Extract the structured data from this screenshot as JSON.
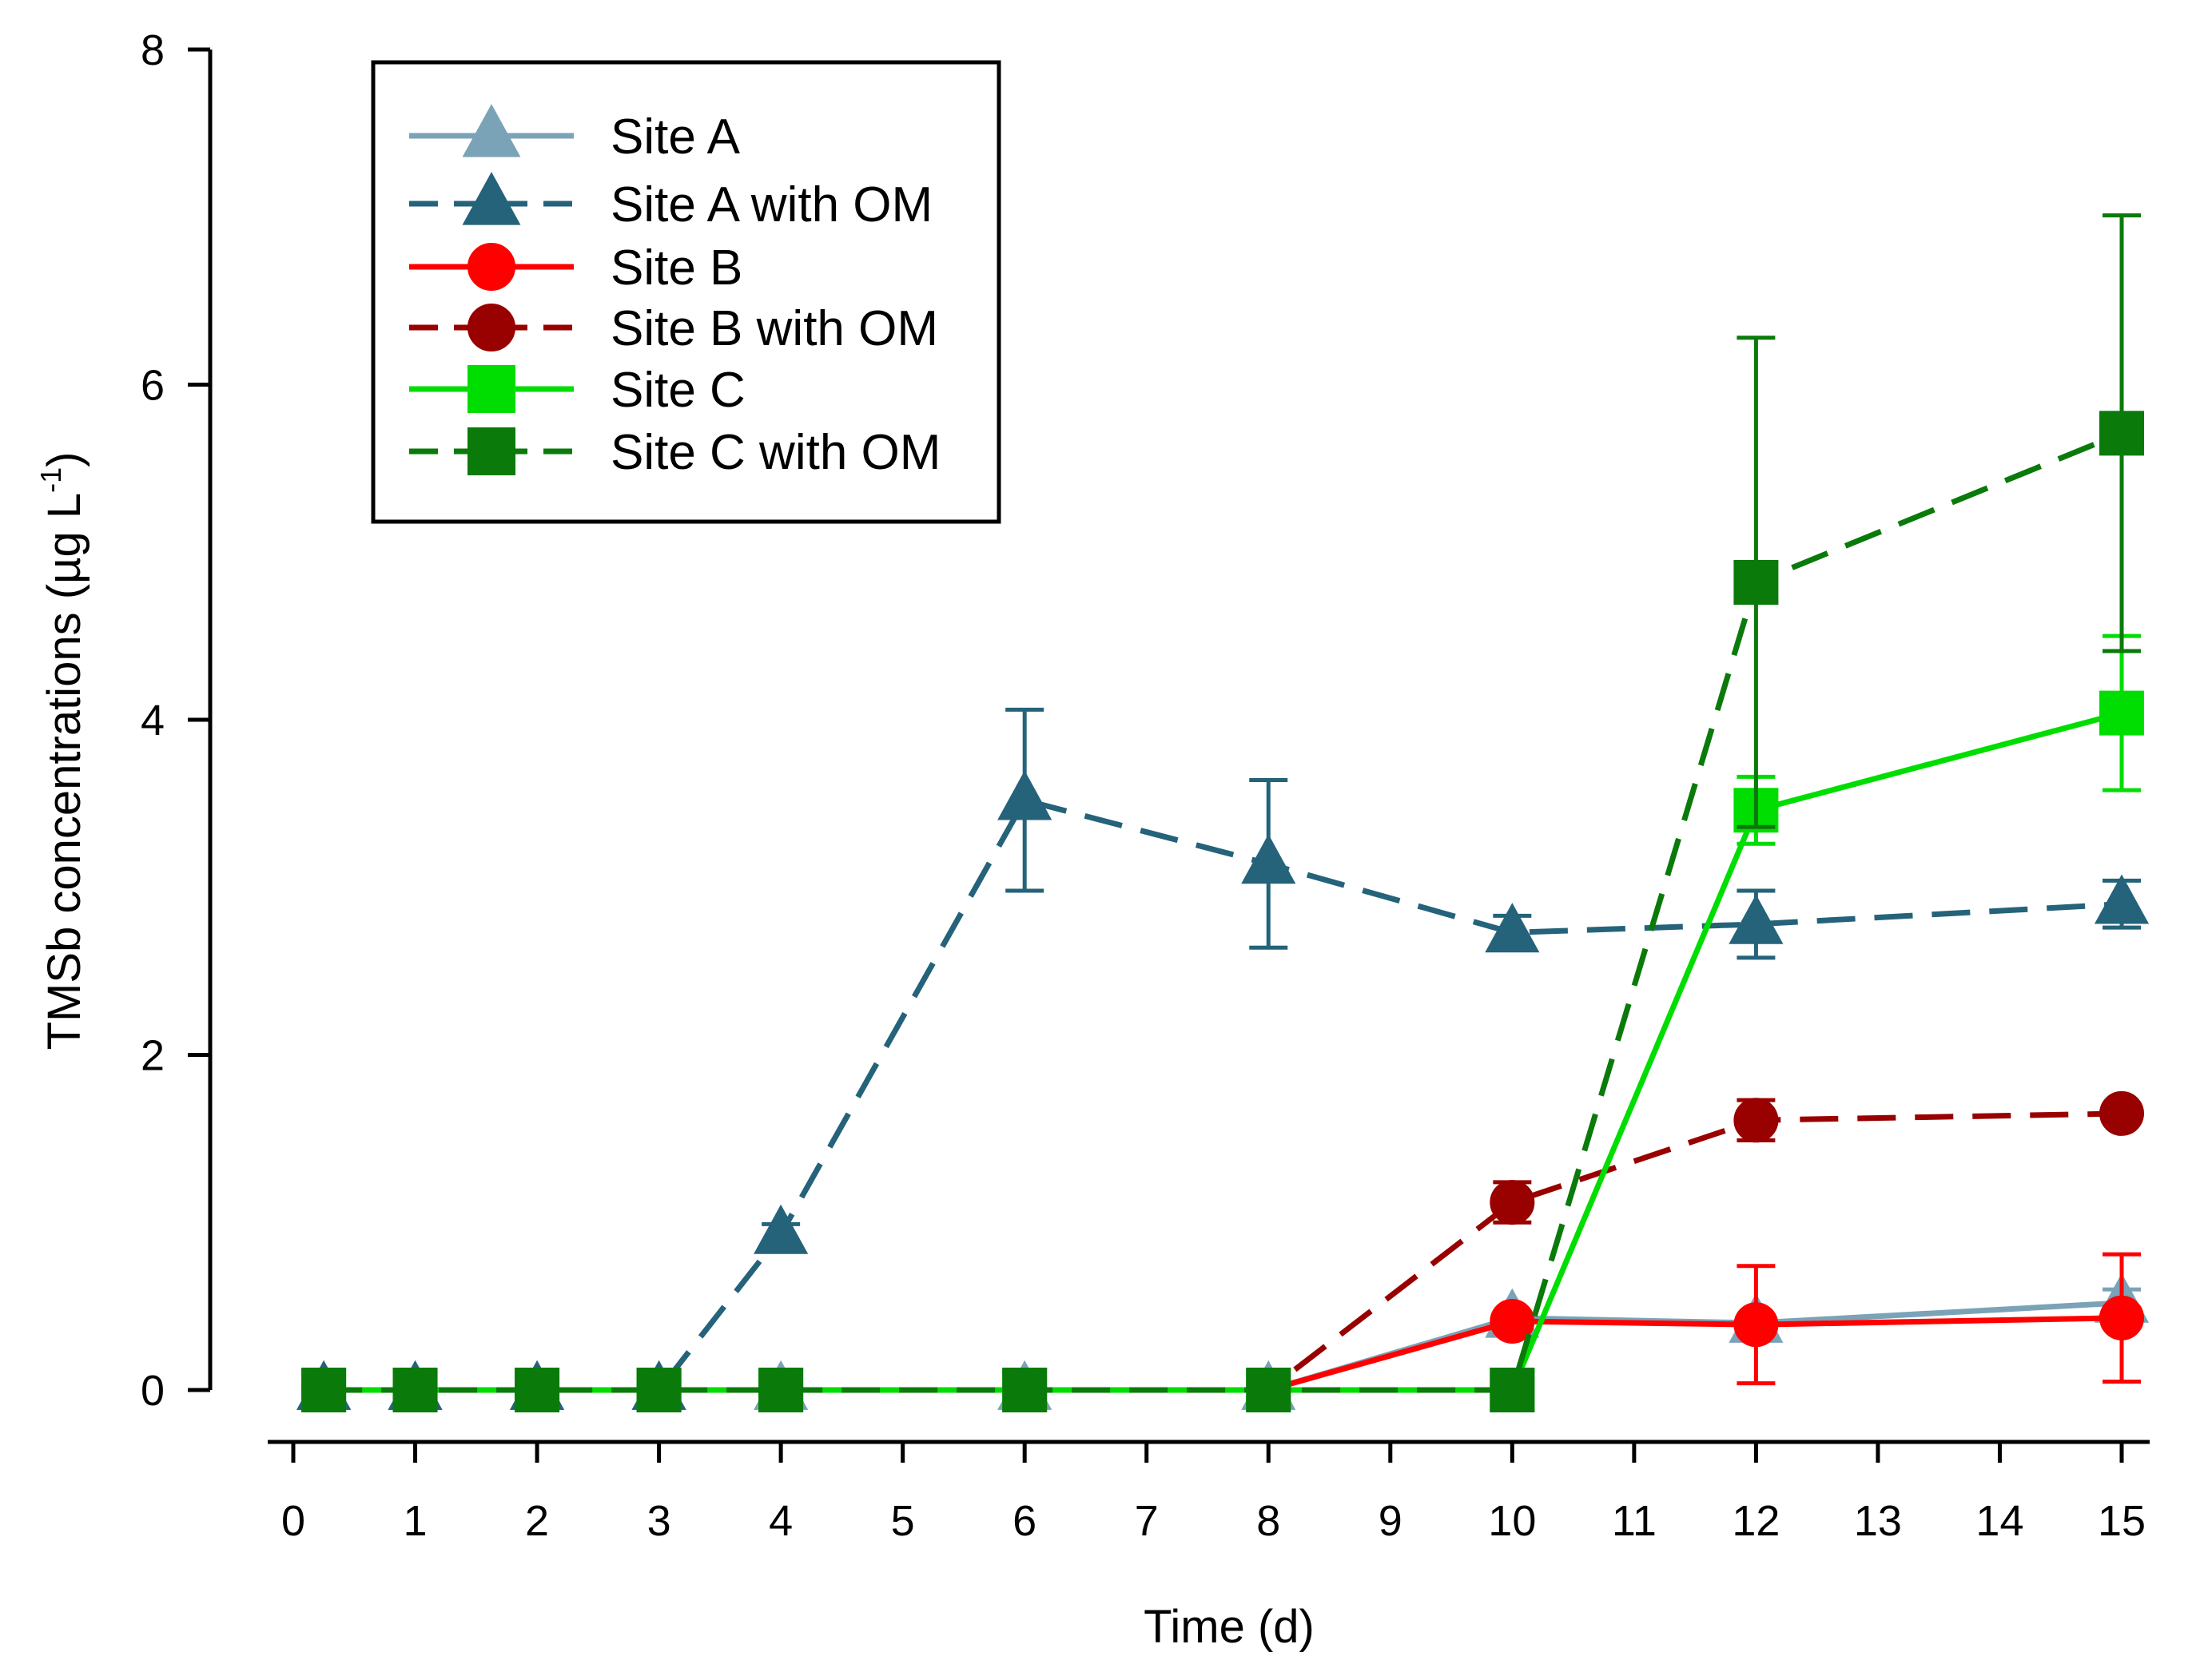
{
  "chart_data": {
    "type": "line",
    "title": "",
    "xlabel": "Time (d)",
    "ylabel": "TMSb concentrations (µg L",
    "ylabel_sup": "-1",
    "ylabel_close": ")",
    "xlim": [
      0,
      15
    ],
    "ylim": [
      0,
      8
    ],
    "x_ticks": [
      0,
      1,
      2,
      3,
      4,
      5,
      6,
      7,
      8,
      9,
      10,
      11,
      12,
      13,
      14,
      15
    ],
    "y_ticks": [
      0,
      2,
      4,
      6,
      8
    ],
    "grid": false,
    "legend_position": "top-left",
    "series": [
      {
        "name": "Site A",
        "color": "#7ba3b8",
        "dash": "solid",
        "marker": "triangle",
        "x": [
          0.25,
          1,
          2,
          3,
          4,
          6,
          8,
          10,
          12,
          15
        ],
        "y": [
          0,
          0,
          0,
          0,
          0,
          0,
          0,
          0.43,
          0.4,
          0.52
        ],
        "err": [
          0,
          0,
          0,
          0,
          0,
          0,
          0,
          0,
          0,
          0.08
        ]
      },
      {
        "name": "Site A with OM",
        "color": "#24637a",
        "dash": "dashed",
        "marker": "triangle",
        "x": [
          0.25,
          1,
          2,
          3,
          4,
          6,
          8,
          10,
          12,
          15
        ],
        "y": [
          0,
          0,
          0,
          0,
          0.93,
          3.52,
          3.14,
          2.73,
          2.78,
          2.9
        ],
        "err": [
          0,
          0,
          0,
          0,
          0.06,
          0.54,
          0.5,
          0.1,
          0.2,
          0.14
        ]
      },
      {
        "name": "Site B",
        "color": "#ff0000",
        "dash": "solid",
        "marker": "circle",
        "x": [
          0.25,
          1,
          2,
          3,
          4,
          6,
          8,
          10,
          12,
          15
        ],
        "y": [
          0,
          0,
          0,
          0,
          0,
          0,
          0,
          0.41,
          0.39,
          0.43
        ],
        "err": [
          0,
          0,
          0,
          0,
          0,
          0,
          0,
          0,
          0.35,
          0.38
        ]
      },
      {
        "name": "Site B with OM",
        "color": "#990000",
        "dash": "dashed",
        "marker": "circle",
        "x": [
          0.25,
          1,
          2,
          3,
          4,
          6,
          8,
          10,
          12,
          15
        ],
        "y": [
          0,
          0,
          0,
          0,
          0,
          0,
          0,
          1.12,
          1.61,
          1.65
        ],
        "err": [
          0,
          0,
          0,
          0,
          0,
          0,
          0,
          0.12,
          0.12,
          0.04
        ]
      },
      {
        "name": "Site C",
        "color": "#00dd00",
        "dash": "solid",
        "marker": "square",
        "x": [
          0.25,
          1,
          2,
          3,
          4,
          6,
          8,
          10,
          12,
          15
        ],
        "y": [
          0,
          0,
          0,
          0,
          0,
          0,
          0,
          0,
          3.46,
          4.04
        ],
        "err": [
          0,
          0,
          0,
          0,
          0,
          0,
          0,
          0,
          0.2,
          0.46
        ]
      },
      {
        "name": "Site C with OM",
        "color": "#0a7a0a",
        "dash": "dashed",
        "marker": "square",
        "x": [
          0.25,
          1,
          2,
          3,
          4,
          6,
          8,
          10,
          12,
          15
        ],
        "y": [
          0,
          0,
          0,
          0,
          0,
          0,
          0,
          0,
          4.82,
          5.71
        ],
        "err": [
          0,
          0,
          0,
          0,
          0,
          0,
          0,
          0,
          1.46,
          1.3
        ]
      }
    ]
  }
}
